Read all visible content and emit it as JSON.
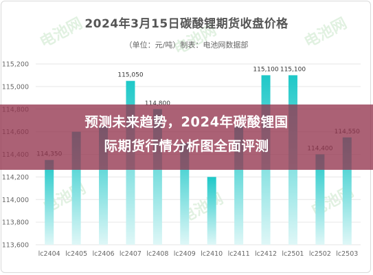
{
  "header": {
    "title": "2024年3月15日碳酸锂期货收盘价格",
    "subtitle": "（单位：元/吨）制表：电池网数据部"
  },
  "banner": {
    "line1": "预测未来趋势，2024年碳酸锂国",
    "line2": "际期货行情分析图全面评测"
  },
  "watermark": {
    "text": "电池网"
  },
  "colors": {
    "bar_top": "#1ec8c8",
    "bar_bottom": "#dff7f7",
    "grid": "#e6e6e6",
    "axis_text": "#666666",
    "label_text": "#333333"
  },
  "chart_data": {
    "type": "bar",
    "title": "2024年3月15日碳酸锂期货收盘价格",
    "categories": [
      "lc2404",
      "lc2405",
      "lc2406",
      "lc2407",
      "lc2408",
      "lc2409",
      "lc2410",
      "lc2411",
      "lc2412",
      "lc2501",
      "lc2502",
      "lc2503"
    ],
    "values": [
      114350,
      114600,
      114650,
      115050,
      114800,
      114500,
      114200,
      114650,
      115100,
      115100,
      114400,
      114550
    ],
    "data_labels": [
      "114,350",
      "",
      "",
      "115,050",
      "114,800",
      "",
      "",
      "",
      "115,100",
      "115,100",
      "114,400",
      "114,550"
    ],
    "ylim": [
      113600,
      115200
    ],
    "yticks": [
      113600,
      113800,
      114000,
      114200,
      114400,
      114600,
      114800,
      115000,
      115200
    ],
    "ytick_labels": [
      "113,600",
      "113,800",
      "114,000",
      "114,200",
      "114,400",
      "114,600",
      "114,800",
      "115,000",
      "115,200"
    ],
    "grid": true,
    "xlabel": "",
    "ylabel": ""
  }
}
